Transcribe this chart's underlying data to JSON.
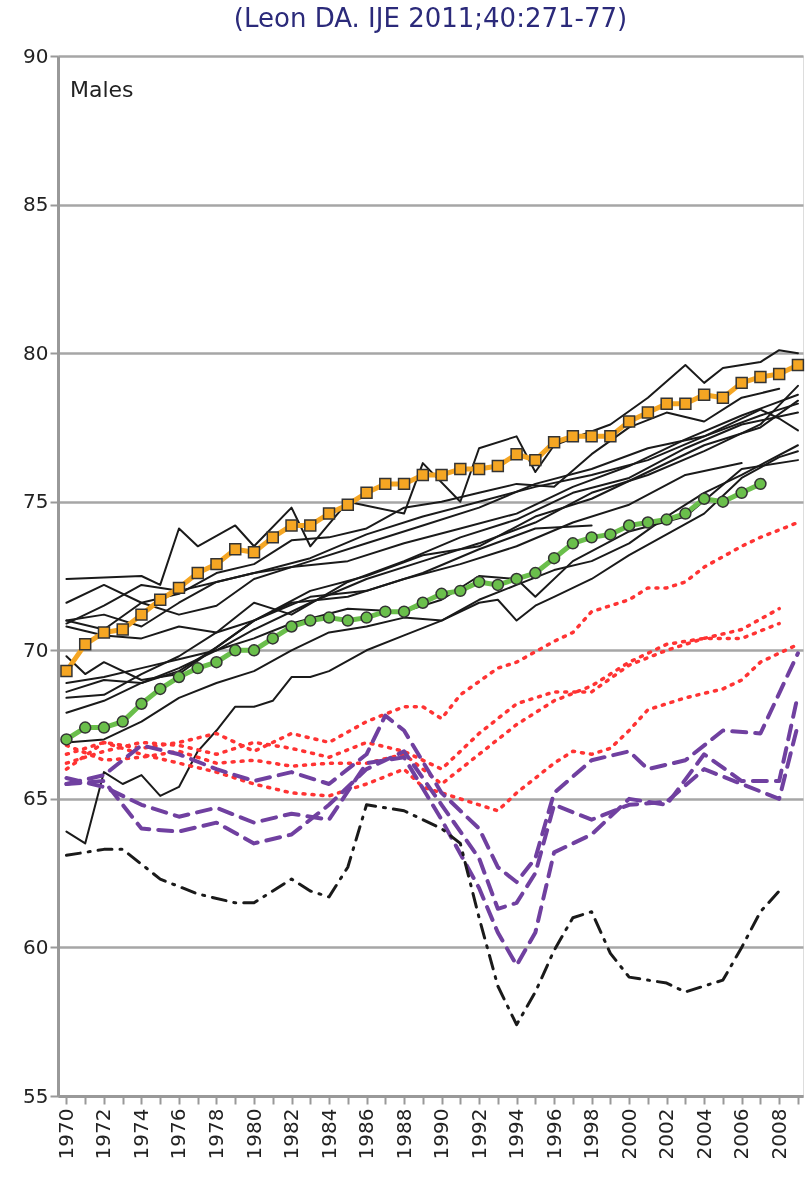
{
  "chart_data": {
    "type": "line",
    "title": "(Leon DA. IJE 2011;40:271-77)",
    "annotations": [
      "Males"
    ],
    "xlim": [
      1969.55,
      2009.27
    ],
    "ylim": [
      55,
      90
    ],
    "yticks": [
      55,
      60,
      65,
      70,
      75,
      80,
      85,
      90
    ],
    "xticks": [
      1970,
      {
        "value": 1971,
        "label": null
      },
      1972,
      {
        "value": 1973,
        "label": null
      },
      1974,
      {
        "value": 1975,
        "label": null
      },
      1976,
      {
        "value": 1977,
        "label": null
      },
      1978,
      {
        "value": 1979,
        "label": null
      },
      1980,
      {
        "value": 1981,
        "label": null
      },
      1982,
      {
        "value": 1983,
        "label": null
      },
      1984,
      {
        "value": 1985,
        "label": null
      },
      1986,
      {
        "value": 1987,
        "label": null
      },
      1988,
      {
        "value": 1989,
        "label": null
      },
      1990,
      {
        "value": 1991,
        "label": null
      },
      1992,
      {
        "value": 1993,
        "label": null
      },
      1994,
      {
        "value": 1995,
        "label": null
      },
      1996,
      {
        "value": 1997,
        "label": null
      },
      1998,
      {
        "value": 1999,
        "label": null
      },
      2000,
      {
        "value": 2001,
        "label": null
      },
      2002,
      {
        "value": 2003,
        "label": null
      },
      2004,
      {
        "value": 2005,
        "label": null
      },
      2006,
      {
        "value": 2007,
        "label": null
      },
      2008,
      {
        "value": 2009,
        "label": null
      }
    ],
    "grid": "y",
    "series": [
      {
        "color": "#1a1a1a",
        "line_style": "solid",
        "x": [
          1970,
          1974,
          1975,
          1976,
          1977,
          1979,
          1980,
          1982,
          1983,
          1985,
          1988,
          1989,
          1991,
          1992,
          1994,
          1995,
          1996,
          1999,
          2001,
          2003,
          2004,
          2005,
          2007,
          2008,
          2009
        ],
        "values": [
          72.4,
          72.5,
          72.2,
          74.1,
          73.5,
          74.2,
          73.5,
          74.8,
          73.5,
          75.0,
          74.6,
          76.3,
          75.0,
          76.8,
          77.2,
          76.0,
          76.9,
          77.6,
          78.5,
          79.6,
          79.0,
          79.5,
          79.7,
          80.1,
          80.0
        ]
      },
      {
        "color": "#1a1a1a",
        "line_style": "solid",
        "x": [
          1970,
          1971,
          1972,
          1973,
          1974,
          1975,
          1976,
          1977,
          1978,
          1979,
          1980,
          1981,
          1982,
          1983,
          1984,
          1986,
          1988,
          1990,
          1992,
          1993,
          1994,
          1995,
          1996,
          1998,
          2000,
          2002,
          2004,
          2006,
          2008,
          2009
        ],
        "values": [
          63.9,
          63.5,
          65.9,
          65.5,
          65.8,
          65.1,
          65.4,
          66.6,
          67.3,
          68.1,
          68.1,
          68.3,
          69.1,
          69.1,
          69.3,
          70.0,
          70.5,
          71.0,
          71.6,
          71.7,
          71.0,
          71.5,
          71.8,
          72.4,
          73.2,
          73.9,
          74.6,
          75.8,
          76.5,
          76.7
        ]
      },
      {
        "color": "#1a1a1a",
        "line_style": "solid",
        "x": [
          1970,
          1972,
          1974,
          1976,
          1978,
          1980,
          1983,
          1986,
          1989,
          1992,
          1995,
          1998,
          2001,
          2004,
          2007,
          2008,
          2009
        ],
        "values": [
          71.6,
          72.2,
          71.6,
          71.2,
          71.5,
          72.4,
          73.0,
          73.6,
          74.2,
          74.8,
          75.6,
          76.1,
          76.8,
          77.2,
          78.1,
          77.8,
          77.4
        ]
      },
      {
        "color": "#1a1a1a",
        "line_style": "solid",
        "x": [
          1970,
          1972,
          1974,
          1976,
          1978,
          1980,
          1983,
          1986,
          1989,
          1992,
          1995,
          1998,
          2001,
          2004,
          2007,
          2009
        ],
        "values": [
          71.0,
          71.2,
          70.8,
          71.6,
          72.3,
          72.6,
          73.1,
          73.9,
          74.5,
          75.0,
          75.5,
          75.9,
          76.4,
          77.2,
          77.9,
          78.3
        ]
      },
      {
        "color": "#1a1a1a",
        "line_style": "solid",
        "x": [
          1970,
          1972,
          1974,
          1976,
          1978,
          1980,
          1982,
          1985,
          1988,
          1991,
          1994,
          1997,
          2000,
          2003,
          2006,
          2009
        ],
        "values": [
          70.9,
          71.5,
          72.2,
          72.0,
          72.3,
          72.6,
          72.8,
          73.0,
          73.6,
          74.1,
          74.6,
          75.5,
          76.2,
          77.1,
          77.9,
          78.6
        ]
      },
      {
        "color": "#1a1a1a",
        "line_style": "solid",
        "x": [
          1970,
          1972,
          1974,
          1976,
          1978,
          1980,
          1982,
          1985,
          1988,
          1991,
          1994,
          1997,
          2000,
          2003,
          2006,
          2009
        ],
        "values": [
          70.8,
          70.5,
          70.4,
          70.8,
          70.6,
          71.6,
          71.2,
          72.3,
          73.0,
          73.8,
          74.4,
          75.3,
          75.8,
          76.8,
          77.6,
          78.0
        ]
      },
      {
        "color": "#1a1a1a",
        "line_style": "solid",
        "x": [
          1970,
          1971,
          1972,
          1974,
          1976,
          1978,
          1980,
          1983,
          1986,
          1989,
          1992,
          1995,
          1998,
          2001,
          2004,
          2007,
          2009
        ],
        "values": [
          69.8,
          69.2,
          69.6,
          69.0,
          69.2,
          70.1,
          71.0,
          72.0,
          72.5,
          73.2,
          73.5,
          74.5,
          75.1,
          76.0,
          76.9,
          77.5,
          78.4
        ]
      },
      {
        "color": "#1a1a1a",
        "line_style": "solid",
        "x": [
          1970,
          1972,
          1974,
          1976,
          1978,
          1980,
          1983,
          1986,
          1989,
          1992,
          1995,
          1998,
          2001,
          2004,
          2007,
          2009
        ],
        "values": [
          68.9,
          69.1,
          69.4,
          69.7,
          70.0,
          70.7,
          71.6,
          72.4,
          73.0,
          73.6,
          74.3,
          75.3,
          75.9,
          76.7,
          77.6,
          78.9
        ]
      },
      {
        "color": "#1a1a1a",
        "line_style": "solid",
        "x": [
          1970,
          1972,
          1974,
          1976,
          1978,
          1980,
          1982,
          1985,
          1988,
          1991,
          1994,
          1997,
          2000,
          2003,
          2006
        ],
        "values": [
          68.6,
          69.0,
          68.9,
          69.3,
          70.1,
          71.0,
          71.6,
          71.8,
          72.4,
          72.9,
          73.5,
          74.3,
          74.9,
          75.9,
          76.3
        ]
      },
      {
        "color": "#1a1a1a",
        "line_style": "solid",
        "x": [
          1970,
          1972,
          1974,
          1976,
          1978,
          1980,
          1983,
          1986,
          1989,
          1992,
          1995,
          1998
        ],
        "values": [
          68.4,
          68.5,
          69.2,
          69.8,
          70.6,
          71.0,
          71.8,
          72.0,
          72.6,
          73.4,
          74.1,
          74.2
        ]
      },
      {
        "color": "#1a1a1a",
        "line_style": "solid",
        "x": [
          1970,
          1972,
          1974,
          1976,
          1978,
          1980,
          1982,
          1985,
          1988,
          1990,
          1992,
          1994,
          1995,
          1997,
          2000,
          2003,
          2006,
          2009
        ],
        "values": [
          67.9,
          68.3,
          68.9,
          69.4,
          70.0,
          70.4,
          70.9,
          71.4,
          71.3,
          71.7,
          72.5,
          72.4,
          71.8,
          73.0,
          74.0,
          74.5,
          76.1,
          76.4
        ]
      },
      {
        "color": "#1a1a1a",
        "line_style": "solid",
        "x": [
          1970,
          1972,
          1974,
          1976,
          1978,
          1980,
          1982,
          1984,
          1986,
          1988,
          1990,
          1992,
          1994,
          1996,
          1998,
          2000,
          2002,
          2004,
          2006,
          2009
        ],
        "values": [
          66.9,
          67.0,
          67.6,
          68.4,
          68.9,
          69.3,
          70.0,
          70.6,
          70.8,
          71.1,
          71.0,
          71.7,
          72.2,
          72.7,
          73.0,
          73.6,
          74.5,
          75.3,
          75.9,
          76.9
        ]
      },
      {
        "color": "#1a1a1a",
        "line_style": "solid",
        "x": [
          1970,
          1972,
          1974,
          1976,
          1978,
          1980,
          1982,
          1984,
          1986,
          1988,
          1990,
          1992,
          1994,
          1996,
          1998,
          2000,
          2002,
          2004,
          2006,
          2008
        ],
        "values": [
          71.0,
          70.7,
          71.6,
          71.9,
          72.6,
          72.9,
          73.7,
          73.8,
          74.1,
          74.8,
          75.0,
          75.3,
          75.6,
          75.5,
          76.6,
          77.5,
          78.0,
          77.7,
          78.5,
          78.8
        ]
      },
      {
        "color": "#ff3333",
        "line_style": "dotted",
        "x": [
          1970,
          1972,
          1974,
          1976,
          1978,
          1980,
          1982,
          1984,
          1986,
          1988,
          1989,
          1990,
          1991,
          1993,
          1994,
          1996,
          1997,
          1998,
          2000,
          2001,
          2002,
          2003,
          2004,
          2006,
          2007,
          2009
        ],
        "values": [
          66.5,
          66.9,
          66.7,
          66.9,
          67.2,
          66.6,
          67.2,
          66.9,
          67.6,
          68.1,
          68.1,
          67.7,
          68.5,
          69.4,
          69.6,
          70.3,
          70.6,
          71.3,
          71.7,
          72.1,
          72.1,
          72.3,
          72.8,
          73.5,
          73.8,
          74.3
        ]
      },
      {
        "color": "#ff3333",
        "line_style": "dotted",
        "x": [
          1970,
          1972,
          1974,
          1976,
          1978,
          1980,
          1982,
          1984,
          1986,
          1988,
          1990,
          1992,
          1994,
          1996,
          1998,
          2000,
          2002,
          2004,
          2006,
          2008
        ],
        "values": [
          66.2,
          66.6,
          66.9,
          66.8,
          66.5,
          66.9,
          66.7,
          66.4,
          66.9,
          66.6,
          66.0,
          67.2,
          68.2,
          68.6,
          68.6,
          69.5,
          70.0,
          70.4,
          70.7,
          71.4
        ]
      },
      {
        "color": "#ff3333",
        "line_style": "dotted",
        "x": [
          1970,
          1972,
          1974,
          1976,
          1978,
          1980,
          1982,
          1984,
          1986,
          1988,
          1990,
          1992,
          1994,
          1996,
          1998,
          2000,
          2002,
          2004,
          2006,
          2008
        ],
        "values": [
          66.8,
          66.3,
          66.4,
          66.6,
          66.2,
          66.3,
          66.1,
          66.2,
          66.2,
          66.5,
          65.5,
          66.5,
          67.5,
          68.3,
          68.8,
          69.6,
          70.2,
          70.4,
          70.4,
          70.9
        ]
      },
      {
        "color": "#ff3333",
        "line_style": "dotted",
        "x": [
          1970,
          1972,
          1974,
          1976,
          1978,
          1980,
          1982,
          1984,
          1986,
          1988,
          1989,
          1991,
          1993,
          1994,
          1996,
          1997,
          1998,
          1999,
          2000,
          2001,
          2003,
          2005,
          2006,
          2007,
          2009
        ],
        "values": [
          66.0,
          66.9,
          66.5,
          66.2,
          65.9,
          65.5,
          65.2,
          65.1,
          65.5,
          66.0,
          65.4,
          65.0,
          64.6,
          65.2,
          66.2,
          66.6,
          66.5,
          66.7,
          67.3,
          68.0,
          68.4,
          68.7,
          69.0,
          69.6,
          70.2
        ]
      },
      {
        "color": "#7040a0",
        "line_style": "dashed",
        "x": [
          1970,
          1972,
          1974,
          1976,
          1978,
          1980,
          1982,
          1984,
          1986,
          1987,
          1988,
          1990,
          1992,
          1993,
          1994,
          1995,
          1996,
          1998,
          2000,
          2001,
          2003,
          2005,
          2007,
          2009
        ],
        "values": [
          65.5,
          65.8,
          66.8,
          66.5,
          66.0,
          65.6,
          65.9,
          65.5,
          66.5,
          67.8,
          67.3,
          65.2,
          64.0,
          62.7,
          62.2,
          63.0,
          65.2,
          66.3,
          66.6,
          66.0,
          66.3,
          67.3,
          67.2,
          69.9
        ]
      },
      {
        "color": "#7040a0",
        "line_style": "dashed",
        "x": [
          1970,
          1972,
          1974,
          1976,
          1978,
          1980,
          1982,
          1984,
          1986,
          1988,
          1990,
          1992,
          1993,
          1994,
          1995,
          1996,
          1998,
          2000,
          2002,
          2004,
          2006,
          2008,
          2009
        ],
        "values": [
          65.7,
          65.4,
          64.8,
          64.4,
          64.7,
          64.2,
          64.5,
          64.3,
          66.2,
          66.4,
          64.3,
          62.0,
          60.5,
          59.4,
          60.5,
          63.2,
          63.8,
          65.0,
          64.8,
          66.5,
          65.6,
          65.6,
          68.5
        ]
      },
      {
        "color": "#7040a0",
        "line_style": "dashed",
        "x": [
          1970,
          1972,
          1974,
          1976,
          1978,
          1980,
          1982,
          1984,
          1986,
          1988,
          1990,
          1992,
          1993,
          1994,
          1995,
          1996,
          1998,
          2000,
          2002,
          2004,
          2006,
          2008,
          2009
        ],
        "values": [
          65.5,
          65.6,
          64.0,
          63.9,
          64.2,
          63.5,
          63.8,
          64.8,
          66.0,
          66.6,
          64.8,
          63.0,
          61.3,
          61.5,
          62.5,
          64.8,
          64.3,
          64.8,
          64.9,
          66.0,
          65.5,
          65.0,
          67.5
        ]
      },
      {
        "color": "#1a1a1a",
        "line_style": "dashdot",
        "x": [
          1970,
          1972,
          1973,
          1975,
          1977,
          1979,
          1980,
          1982,
          1983,
          1984,
          1985,
          1986,
          1988,
          1990,
          1991,
          1992,
          1993,
          1994,
          1995,
          1996,
          1997,
          1998,
          1999,
          2000,
          2002,
          2003,
          2005,
          2006,
          2007,
          2008
        ],
        "values": [
          63.1,
          63.3,
          63.3,
          62.3,
          61.8,
          61.5,
          61.5,
          62.3,
          61.9,
          61.7,
          62.7,
          64.8,
          64.6,
          64.0,
          63.5,
          61.0,
          58.7,
          57.4,
          58.5,
          59.9,
          61.0,
          61.2,
          59.8,
          59.0,
          58.8,
          58.5,
          58.9,
          60.0,
          61.2,
          61.9
        ]
      },
      {
        "color": "#f5a623",
        "line_style": "solid",
        "marker": "square",
        "x": [
          1970,
          1971,
          1972,
          1973,
          1974,
          1975,
          1976,
          1977,
          1978,
          1979,
          1980,
          1981,
          1982,
          1983,
          1984,
          1985,
          1986,
          1987,
          1988,
          1989,
          1990,
          1991,
          1992,
          1993,
          1994,
          1995,
          1996,
          1997,
          1998,
          1999,
          2000,
          2001,
          2002,
          2003,
          2004,
          2005,
          2006,
          2007,
          2008,
          2009
        ],
        "values": [
          69.3,
          70.2,
          70.6,
          70.7,
          71.2,
          71.7,
          72.1,
          72.6,
          72.9,
          73.4,
          73.3,
          73.8,
          74.2,
          74.2,
          74.6,
          74.9,
          75.3,
          75.6,
          75.6,
          75.9,
          75.9,
          76.1,
          76.1,
          76.2,
          76.6,
          76.4,
          77.0,
          77.2,
          77.2,
          77.2,
          77.7,
          78.0,
          78.3,
          78.3,
          78.6,
          78.5,
          79.0,
          79.2,
          79.3,
          79.6
        ]
      },
      {
        "color": "#6abf4b",
        "line_style": "solid",
        "marker": "circle",
        "x": [
          1970,
          1971,
          1972,
          1973,
          1974,
          1975,
          1976,
          1977,
          1978,
          1979,
          1980,
          1981,
          1982,
          1983,
          1984,
          1985,
          1986,
          1987,
          1988,
          1989,
          1990,
          1991,
          1992,
          1993,
          1994,
          1995,
          1996,
          1997,
          1998,
          1999,
          2000,
          2001,
          2002,
          2003,
          2004,
          2005,
          2006,
          2007
        ],
        "values": [
          67.0,
          67.4,
          67.4,
          67.6,
          68.2,
          68.7,
          69.1,
          69.4,
          69.6,
          70.0,
          70.0,
          70.4,
          70.8,
          71.0,
          71.1,
          71.0,
          71.1,
          71.3,
          71.3,
          71.6,
          71.9,
          72.0,
          72.3,
          72.2,
          72.4,
          72.6,
          73.1,
          73.6,
          73.8,
          73.9,
          74.2,
          74.3,
          74.4,
          74.6,
          75.1,
          75.0,
          75.3,
          75.6
        ]
      }
    ]
  }
}
